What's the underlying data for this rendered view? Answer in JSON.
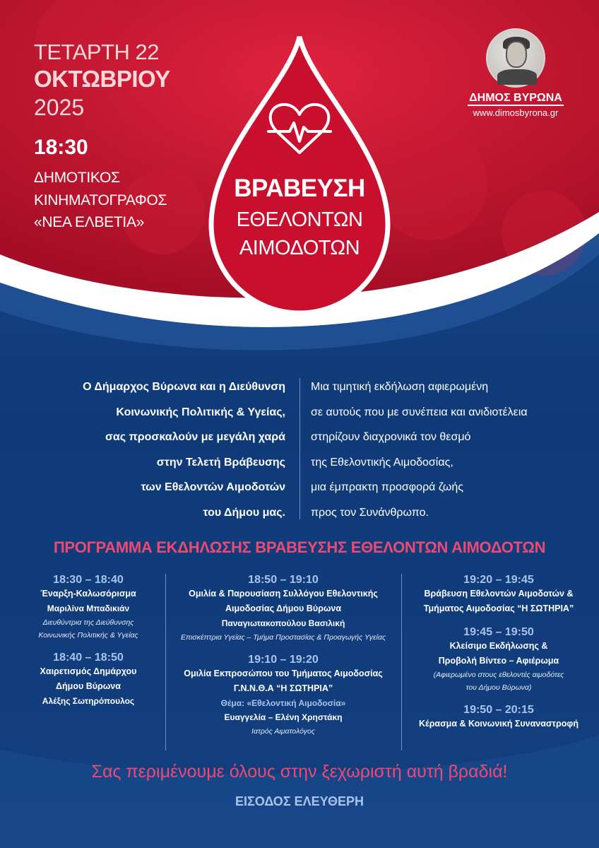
{
  "colors": {
    "red": "#c4132f",
    "blue": "#123e7c",
    "pink": "#ec4a73",
    "light_blue": "#a9c4ea"
  },
  "event": {
    "day": "ΤΕΤΑΡΤΗ 22",
    "month": "ΟΚΤΩΒΡΙΟΥ",
    "year": "2025",
    "time": "18:30",
    "venue": [
      "ΔΗΜΟΤΙΚΟΣ",
      "ΚΙΝΗΜΑΤΟΓΡΑΦΟΣ",
      "«ΝΕΑ ΕΛΒΕΤΙΑ»"
    ]
  },
  "logo": {
    "name": "ΔΗΜΟΣ ΒΥΡΩΝΑ",
    "url": "www.dimosbyrona.gr"
  },
  "title": {
    "line1": "ΒΡΑΒΕΥΣΗ",
    "line2": "ΕΘΕΛΟΝΤΩΝ",
    "line3": "ΑΙΜΟΔΟΤΩΝ",
    "icon": "heart-pulse-icon"
  },
  "intro": {
    "left": [
      "Ο Δήμαρχος Βύρωνα και η Διεύθυνση",
      "Κοινωνικής Πολιτικής & Υγείας,",
      "σας προσκαλούν με μεγάλη χαρά",
      "στην Τελετή Βράβευσης",
      "των Εθελοντών Αιμοδοτών",
      "του Δήμου μας."
    ],
    "right": [
      "Μια τιμητική εκδήλωση αφιερωμένη",
      "σε αυτούς που με συνέπεια και ανιδιοτέλεια",
      "στηρίζουν διαχρονικά τον θεσμό",
      "της Εθελοντικής Αιμοδοσίας,",
      "μια έμπρακτη προσφορά ζωής",
      "προς τον Συνάνθρωπο."
    ]
  },
  "program": {
    "title": "ΠΡΟΓΡΑΜΜΑ ΕΚΔΗΛΩΣΗΣ ΒΡΑΒΕΥΣΗΣ ΕΘΕΛΟΝΤΩΝ ΑΙΜΟΔΟΤΩΝ",
    "col1": [
      {
        "time": "18:30 – 18:40",
        "title": [
          "Έναρξη-Καλωσόρισμα"
        ],
        "name": "Μαριλίνα Μπαδικιάν",
        "role": [
          "Διευθύντρια της Διεύθυνσης",
          "Κοινωνικής Πολιτικής & Υγείας"
        ]
      },
      {
        "time": "18:40 – 18:50",
        "title": [
          "Χαιρετισμός Δημάρχου",
          "Δήμου Βύρωνα"
        ],
        "name": "Αλέξης Σωτηρόπουλος"
      }
    ],
    "col2": [
      {
        "time": "18:50 – 19:10",
        "title": [
          "Ομιλία & Παρουσίαση Συλλόγου Εθελοντικής",
          "Αιμοδοσίας Δήμου Βύρωνα"
        ],
        "name": "Παναγιωτακοπούλου Βασιλική",
        "role": [
          "Επισκέπτρια Υγείας – Τμήμα Προστασίας & Προαγωγής Υγείας"
        ]
      },
      {
        "time": "19:10 – 19:20",
        "title": [
          "Ομιλία Εκπροσώπου του Τμήματος Αιμοδοσίας",
          "Γ.Ν.Ν.Θ.Α “Η ΣΩΤΗΡΙΑ”"
        ],
        "theme": "Θέμα: «Εθελοντική Αιμοδοσία»",
        "name": "Ευαγγελία – Ελένη Χρηστάκη",
        "role": [
          "Ιατρός Αιματολόγος"
        ]
      }
    ],
    "col3": [
      {
        "time": "19:20 – 19:45",
        "title": [
          "Βράβευση Εθελοντών Αιμοδοτών &",
          "Τμήματος Αιμοδοσίας “Η ΣΩΤΗΡΙΑ”"
        ]
      },
      {
        "time": "19:45 – 19:50",
        "title": [
          "Κλείσιμο Εκδήλωσης &",
          "Προβολή Βίντεο – Αφιέρωμα"
        ],
        "role": [
          "(Αφιερωμένο στους εθελοντές αιμοδότες",
          "του Δήμου Βύρωνα)"
        ]
      },
      {
        "time": "19:50 – 20:15",
        "title": [
          "Κέρασμα & Κοινωνική Συναναστροφή"
        ]
      }
    ]
  },
  "footer": {
    "invite": "Σας περιμένουμε όλους στην ξεχωριστή αυτή βραδιά!",
    "entry": "ΕΙΣΟΔΟΣ ΕΛΕΥΘΕΡΗ"
  }
}
